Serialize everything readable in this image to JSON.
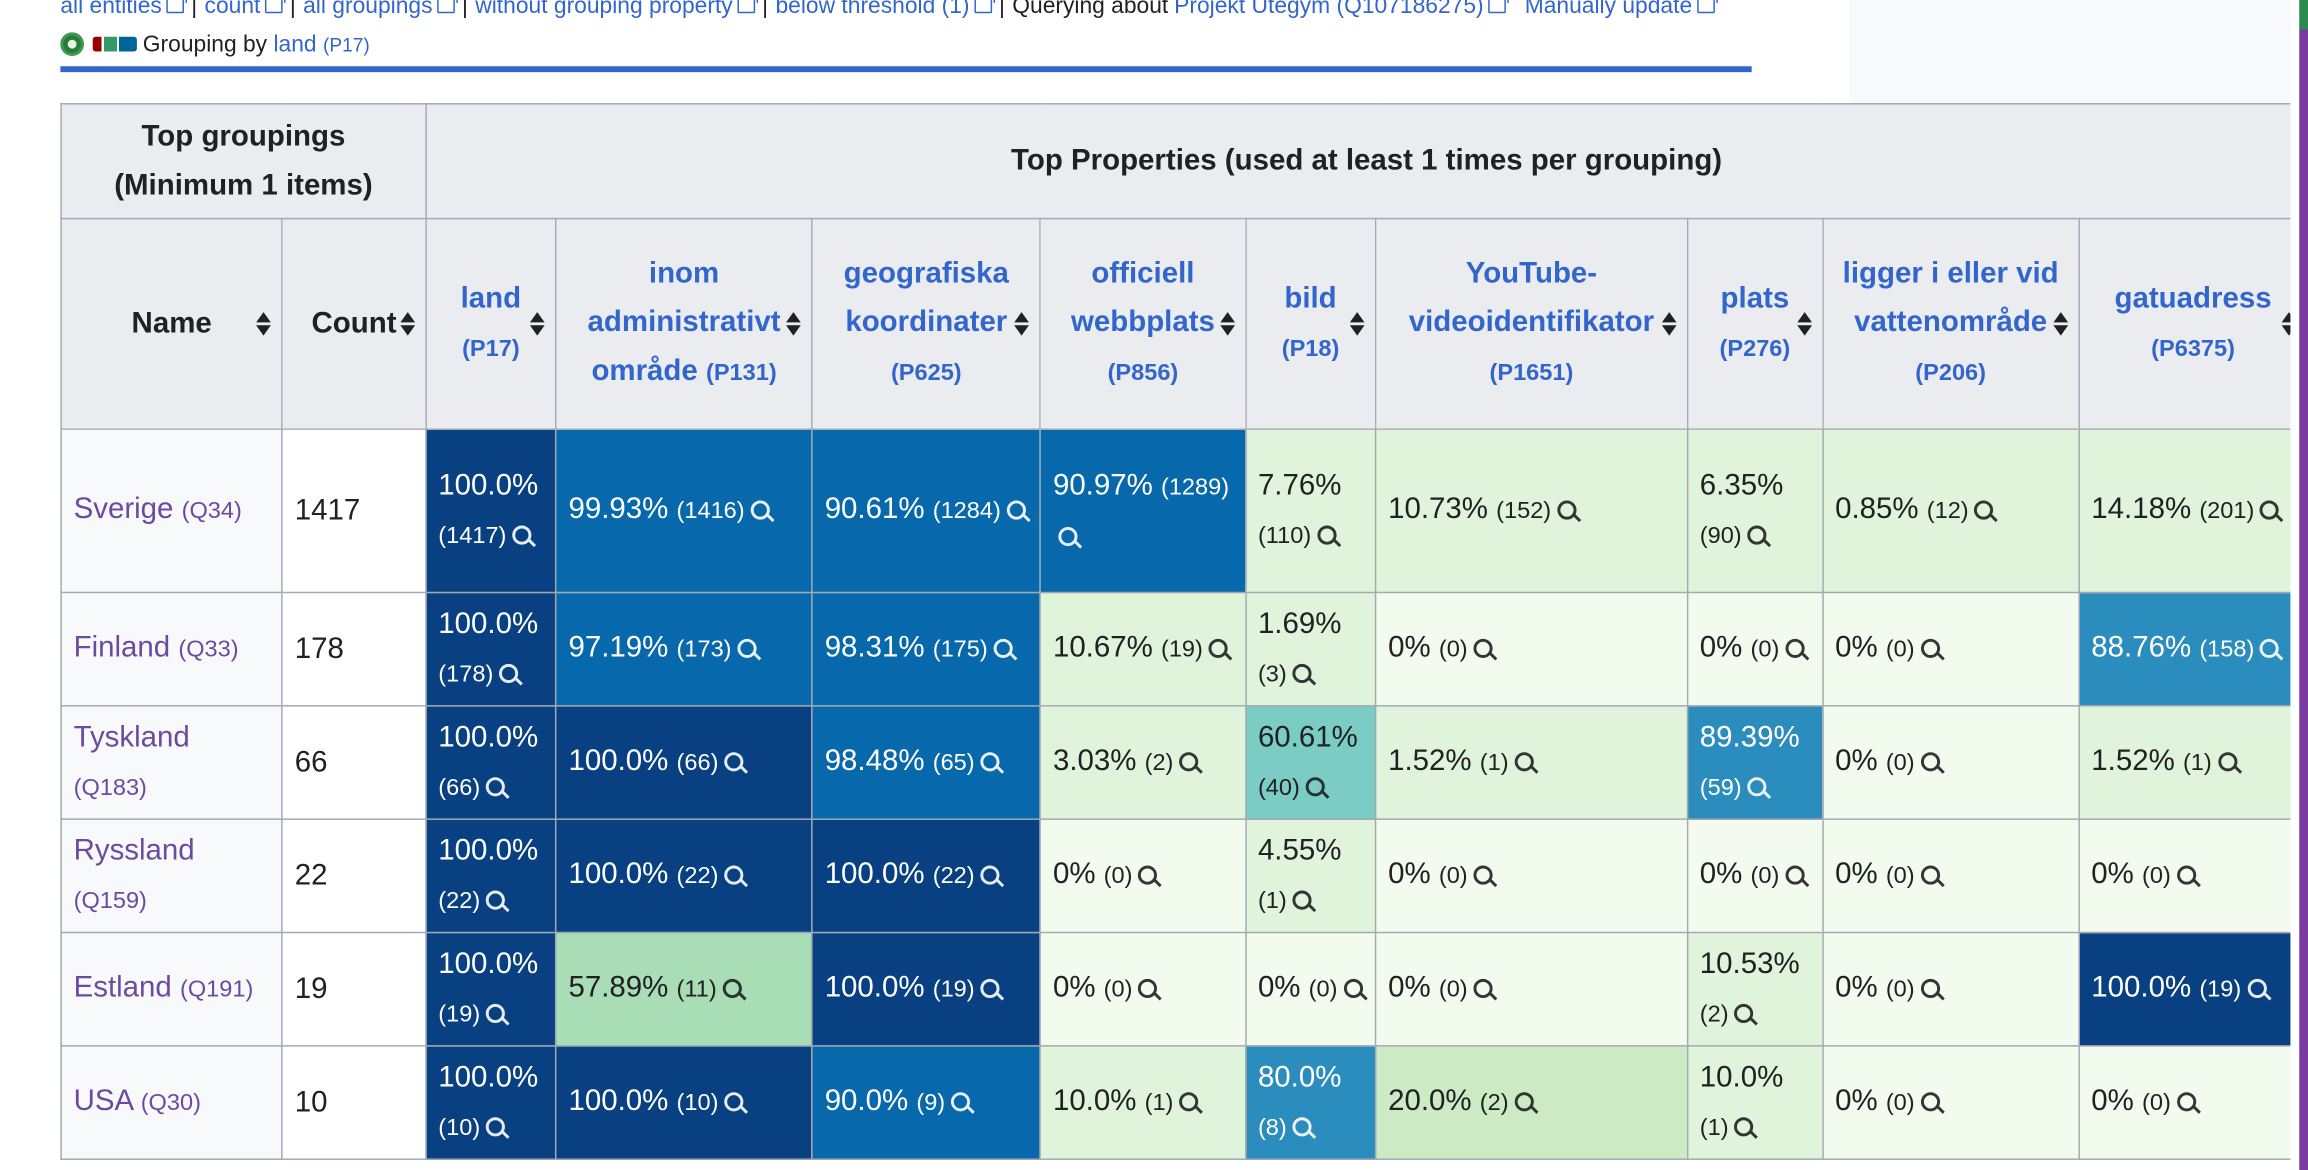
{
  "nav": {
    "links": [
      "all entities",
      "count",
      "all groupings",
      "without grouping property",
      "below threshold (1)"
    ],
    "querying_label": "Querying about",
    "query_item": "Projekt Utegym (Q107186275)",
    "manual_update": "Manually update"
  },
  "grouping": {
    "label": "Grouping by",
    "property": "land",
    "property_id": "(P17)"
  },
  "table": {
    "top_groupings_line1": "Top groupings",
    "top_groupings_line2": "(Minimum 1 items)",
    "top_properties": "Top Properties (used at least 1 times per grouping)",
    "col_name": "Name",
    "col_count": "Count",
    "properties": [
      {
        "label": "land",
        "id": "(P17)"
      },
      {
        "label": "inom administrativt område",
        "id": "(P131)"
      },
      {
        "label": "geografiska koordinater",
        "id": "(P625)"
      },
      {
        "label": "officiell webbplats",
        "id": "(P856)"
      },
      {
        "label": "bild",
        "id": "(P18)"
      },
      {
        "label": "YouTube-videoidentifikator",
        "id": "(P1651)"
      },
      {
        "label": "plats",
        "id": "(P276)"
      },
      {
        "label": "ligger i eller vid vattenområde",
        "id": "(P206)"
      },
      {
        "label": "gatuadress",
        "id": "(P6375)"
      }
    ],
    "rows": [
      {
        "name": "Sverige",
        "qid": "(Q34)",
        "count": "1417",
        "cells": [
          {
            "pct": "100.0%",
            "n": "(1417)",
            "shade": 8
          },
          {
            "pct": "99.93%",
            "n": "(1416)",
            "shade": 7
          },
          {
            "pct": "90.61%",
            "n": "(1284)",
            "shade": 7
          },
          {
            "pct": "90.97%",
            "n": "(1289)",
            "shade": 7
          },
          {
            "pct": "7.76%",
            "n": "(110)",
            "shade": 1
          },
          {
            "pct": "10.73%",
            "n": "(152)",
            "shade": 1
          },
          {
            "pct": "6.35%",
            "n": "(90)",
            "shade": 1
          },
          {
            "pct": "0.85%",
            "n": "(12)",
            "shade": 1
          },
          {
            "pct": "14.18%",
            "n": "(201)",
            "shade": 1
          }
        ]
      },
      {
        "name": "Finland",
        "qid": "(Q33)",
        "count": "178",
        "cells": [
          {
            "pct": "100.0%",
            "n": "(178)",
            "shade": 8
          },
          {
            "pct": "97.19%",
            "n": "(173)",
            "shade": 7
          },
          {
            "pct": "98.31%",
            "n": "(175)",
            "shade": 7
          },
          {
            "pct": "10.67%",
            "n": "(19)",
            "shade": 1
          },
          {
            "pct": "1.69%",
            "n": "(3)",
            "shade": 1
          },
          {
            "pct": "0%",
            "n": "(0)",
            "shade": 0
          },
          {
            "pct": "0%",
            "n": "(0)",
            "shade": 0
          },
          {
            "pct": "0%",
            "n": "(0)",
            "shade": 0
          },
          {
            "pct": "88.76%",
            "n": "(158)",
            "shade": 6
          }
        ]
      },
      {
        "name": "Tyskland",
        "qid": "(Q183)",
        "count": "66",
        "cells": [
          {
            "pct": "100.0%",
            "n": "(66)",
            "shade": 8
          },
          {
            "pct": "100.0%",
            "n": "(66)",
            "shade": 8
          },
          {
            "pct": "98.48%",
            "n": "(65)",
            "shade": 7
          },
          {
            "pct": "3.03%",
            "n": "(2)",
            "shade": 1
          },
          {
            "pct": "60.61%",
            "n": "(40)",
            "shade": 4
          },
          {
            "pct": "1.52%",
            "n": "(1)",
            "shade": 1
          },
          {
            "pct": "89.39%",
            "n": "(59)",
            "shade": 6
          },
          {
            "pct": "0%",
            "n": "(0)",
            "shade": 0
          },
          {
            "pct": "1.52%",
            "n": "(1)",
            "shade": 1
          }
        ]
      },
      {
        "name": "Ryssland",
        "qid": "(Q159)",
        "count": "22",
        "cells": [
          {
            "pct": "100.0%",
            "n": "(22)",
            "shade": 8
          },
          {
            "pct": "100.0%",
            "n": "(22)",
            "shade": 8
          },
          {
            "pct": "100.0%",
            "n": "(22)",
            "shade": 8
          },
          {
            "pct": "0%",
            "n": "(0)",
            "shade": 0
          },
          {
            "pct": "4.55%",
            "n": "(1)",
            "shade": 1
          },
          {
            "pct": "0%",
            "n": "(0)",
            "shade": 0
          },
          {
            "pct": "0%",
            "n": "(0)",
            "shade": 0
          },
          {
            "pct": "0%",
            "n": "(0)",
            "shade": 0
          },
          {
            "pct": "0%",
            "n": "(0)",
            "shade": 0
          }
        ]
      },
      {
        "name": "Estland",
        "qid": "(Q191)",
        "count": "19",
        "cells": [
          {
            "pct": "100.0%",
            "n": "(19)",
            "shade": 8
          },
          {
            "pct": "57.89%",
            "n": "(11)",
            "shade": 3
          },
          {
            "pct": "100.0%",
            "n": "(19)",
            "shade": 8
          },
          {
            "pct": "0%",
            "n": "(0)",
            "shade": 0
          },
          {
            "pct": "0%",
            "n": "(0)",
            "shade": 0
          },
          {
            "pct": "0%",
            "n": "(0)",
            "shade": 0
          },
          {
            "pct": "10.53%",
            "n": "(2)",
            "shade": 1
          },
          {
            "pct": "0%",
            "n": "(0)",
            "shade": 0
          },
          {
            "pct": "100.0%",
            "n": "(19)",
            "shade": 8
          }
        ]
      },
      {
        "name": "USA",
        "qid": "(Q30)",
        "count": "10",
        "cells": [
          {
            "pct": "100.0%",
            "n": "(10)",
            "shade": 8
          },
          {
            "pct": "100.0%",
            "n": "(10)",
            "shade": 8
          },
          {
            "pct": "90.0%",
            "n": "(9)",
            "shade": 7
          },
          {
            "pct": "10.0%",
            "n": "(1)",
            "shade": 1
          },
          {
            "pct": "80.0%",
            "n": "(8)",
            "shade": 6
          },
          {
            "pct": "20.0%",
            "n": "(2)",
            "shade": 2
          },
          {
            "pct": "10.0%",
            "n": "(1)",
            "shade": 1
          },
          {
            "pct": "0%",
            "n": "(0)",
            "shade": 0
          },
          {
            "pct": "0%",
            "n": "(0)",
            "shade": 0
          }
        ]
      }
    ]
  },
  "colors": {
    "link": "#3366cc",
    "visited_link": "#6b4ba1",
    "header_bg": "#eaecf0",
    "scale": [
      "#f3fbef",
      "#e0f3db",
      "#ccebc5",
      "#a8ddb5",
      "#7bccc4",
      "#4eb3d3",
      "#2b8cbe",
      "#0868ac",
      "#084081"
    ]
  },
  "icons": [
    "external-link-icon",
    "gear-icon",
    "wikidata-logo-icon",
    "sort-icon",
    "magnifier-icon"
  ]
}
